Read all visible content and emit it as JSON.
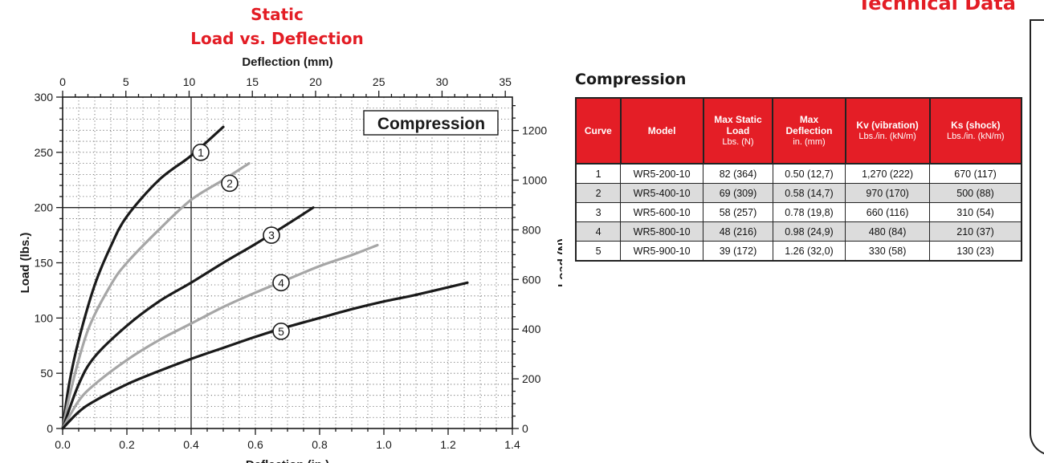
{
  "header": {
    "page_title": "Technical Data"
  },
  "colors": {
    "accent_red": "#e31d25",
    "curve_dark": "#1a1a1a",
    "curve_gray": "#a6a6a6"
  },
  "chart_data": {
    "type": "line",
    "title_line1": "Static",
    "title_line2": "Load vs. Deflection",
    "top_axis_label": "Deflection (mm)",
    "top_ticks": [
      "0",
      "5",
      "10",
      "15",
      "20",
      "25",
      "30",
      "35"
    ],
    "xlabel": "Deflection (in.)",
    "ylabel": "Load (lbs.)",
    "right_axis_label": "Load (N)",
    "xlim": [
      0,
      1.4
    ],
    "ylim": [
      0,
      300
    ],
    "x_ticks": [
      "0.0",
      "0.2",
      "0.4",
      "0.6",
      "0.8",
      "1.0",
      "1.2",
      "1.4"
    ],
    "y_ticks": [
      "0",
      "50",
      "100",
      "150",
      "200",
      "250",
      "300"
    ],
    "right_ticks": [
      "0",
      "200",
      "400",
      "600",
      "800",
      "1000",
      "1200"
    ],
    "legend_label": "Compression",
    "grid": true,
    "series": [
      {
        "label": "1",
        "color": "#1a1a1a",
        "points": [
          [
            0,
            0
          ],
          [
            0.02,
            40
          ],
          [
            0.05,
            80
          ],
          [
            0.1,
            130
          ],
          [
            0.15,
            165
          ],
          [
            0.2,
            192
          ],
          [
            0.3,
            225
          ],
          [
            0.4,
            247
          ],
          [
            0.5,
            273
          ]
        ],
        "marker": [
          0.43,
          250
        ]
      },
      {
        "label": "2",
        "color": "#a6a6a6",
        "points": [
          [
            0,
            0
          ],
          [
            0.03,
            40
          ],
          [
            0.08,
            90
          ],
          [
            0.15,
            130
          ],
          [
            0.2,
            150
          ],
          [
            0.3,
            180
          ],
          [
            0.4,
            207
          ],
          [
            0.5,
            225
          ],
          [
            0.58,
            240
          ]
        ],
        "marker": [
          0.52,
          222
        ]
      },
      {
        "label": "3",
        "color": "#1a1a1a",
        "points": [
          [
            0,
            0
          ],
          [
            0.05,
            40
          ],
          [
            0.1,
            65
          ],
          [
            0.2,
            93
          ],
          [
            0.3,
            115
          ],
          [
            0.4,
            132
          ],
          [
            0.5,
            150
          ],
          [
            0.6,
            167
          ],
          [
            0.7,
            185
          ],
          [
            0.78,
            200
          ]
        ],
        "marker": [
          0.65,
          175
        ]
      },
      {
        "label": "4",
        "color": "#a6a6a6",
        "points": [
          [
            0,
            0
          ],
          [
            0.05,
            25
          ],
          [
            0.1,
            40
          ],
          [
            0.2,
            62
          ],
          [
            0.3,
            80
          ],
          [
            0.4,
            95
          ],
          [
            0.5,
            110
          ],
          [
            0.6,
            123
          ],
          [
            0.7,
            135
          ],
          [
            0.8,
            147
          ],
          [
            0.9,
            157
          ],
          [
            0.98,
            166
          ]
        ],
        "marker": [
          0.68,
          132
        ]
      },
      {
        "label": "5",
        "color": "#1a1a1a",
        "points": [
          [
            0,
            0
          ],
          [
            0.05,
            15
          ],
          [
            0.1,
            25
          ],
          [
            0.2,
            40
          ],
          [
            0.3,
            52
          ],
          [
            0.4,
            63
          ],
          [
            0.5,
            73
          ],
          [
            0.6,
            83
          ],
          [
            0.7,
            92
          ],
          [
            0.8,
            100
          ],
          [
            0.9,
            108
          ],
          [
            1.0,
            115
          ],
          [
            1.1,
            121
          ],
          [
            1.26,
            132
          ]
        ],
        "marker": [
          0.68,
          88
        ]
      }
    ]
  },
  "table": {
    "title": "Compression",
    "headers": [
      {
        "main": "Curve",
        "unit": ""
      },
      {
        "main": "Model",
        "unit": ""
      },
      {
        "main": "Max Static Load",
        "unit": "Lbs. (N)"
      },
      {
        "main": "Max Deflection",
        "unit": "in. (mm)"
      },
      {
        "main": "Kv (vibration)",
        "unit": "Lbs./in. (kN/m)"
      },
      {
        "main": "Ks (shock)",
        "unit": "Lbs./in. (kN/m)"
      }
    ],
    "rows": [
      [
        "1",
        "WR5-200-10",
        "82 (364)",
        "0.50 (12,7)",
        "1,270 (222)",
        "670 (117)"
      ],
      [
        "2",
        "WR5-400-10",
        "69 (309)",
        "0.58 (14,7)",
        "970 (170)",
        "500 (88)"
      ],
      [
        "3",
        "WR5-600-10",
        "58 (257)",
        "0.78 (19,8)",
        "660 (116)",
        "310 (54)"
      ],
      [
        "4",
        "WR5-800-10",
        "48 (216)",
        "0.98 (24,9)",
        "480 (84)",
        "210 (37)"
      ],
      [
        "5",
        "WR5-900-10",
        "39 (172)",
        "1.26 (32,0)",
        "330 (58)",
        "130 (23)"
      ]
    ]
  }
}
